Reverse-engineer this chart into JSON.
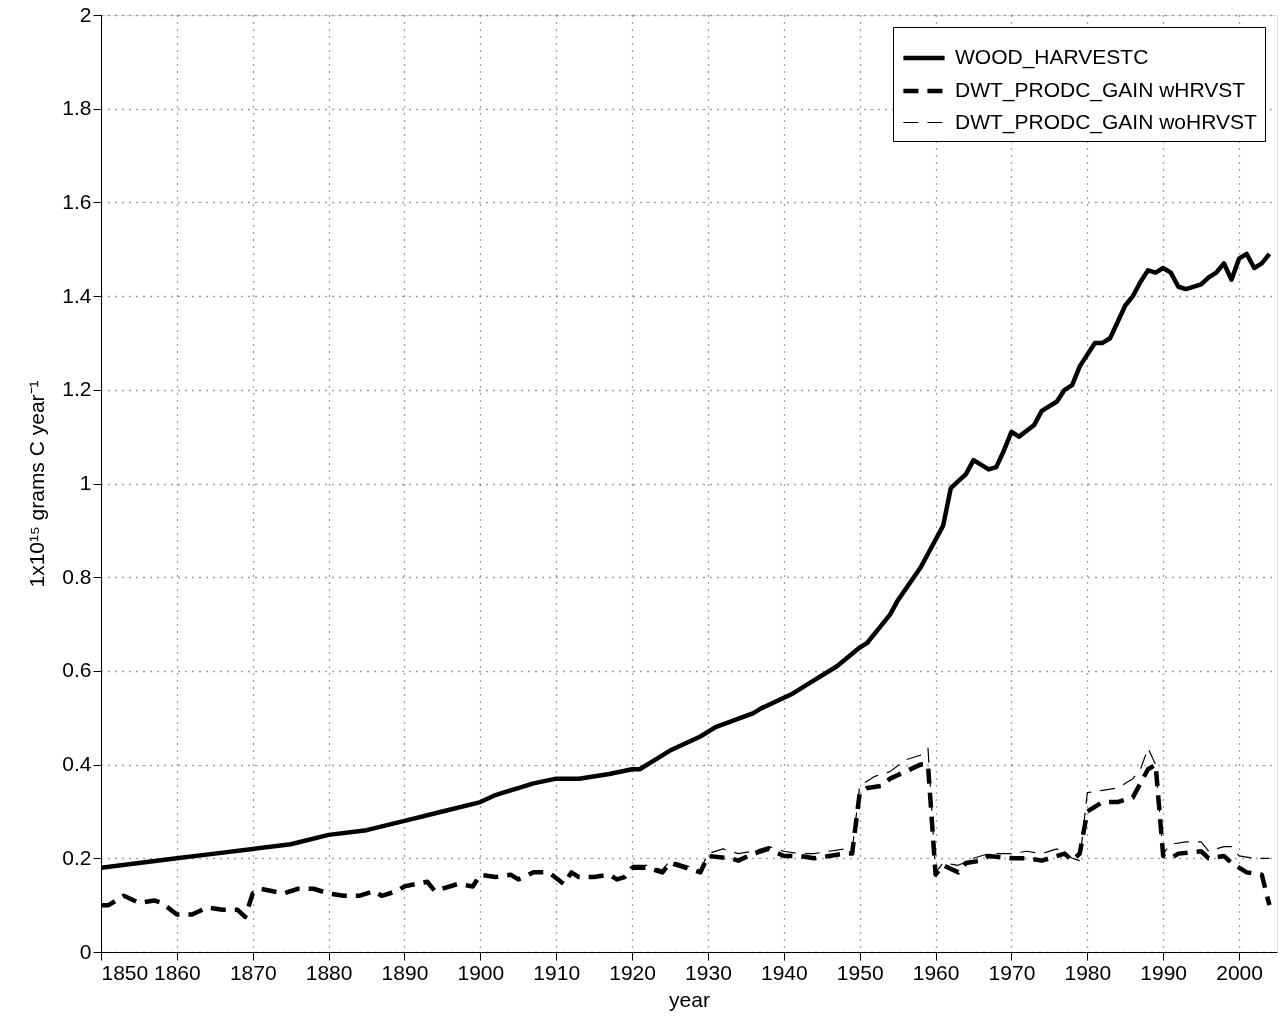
{
  "chart_data": {
    "type": "line",
    "xlabel": "year",
    "ylabel": "1x10¹⁵ grams C year⁻¹",
    "xlim": [
      1850,
      2005
    ],
    "ylim": [
      0,
      2
    ],
    "xticks": [
      1850,
      1860,
      1870,
      1880,
      1890,
      1900,
      1910,
      1920,
      1930,
      1940,
      1950,
      1960,
      1970,
      1980,
      1990,
      2000
    ],
    "yticks": [
      0,
      0.2,
      0.4,
      0.6,
      0.8,
      1,
      1.2,
      1.4,
      1.6,
      1.8,
      2
    ],
    "grid": true,
    "legend": "top right",
    "series": [
      {
        "name": "WOOD_HARVESTC",
        "color": "#000000",
        "line_style": "solid",
        "x": [
          1850,
          1855,
          1860,
          1865,
          1870,
          1875,
          1880,
          1885,
          1890,
          1895,
          1900,
          1902,
          1903,
          1905,
          1907,
          1910,
          1913,
          1917,
          1920,
          1921,
          1925,
          1929,
          1931,
          1936,
          1937,
          1941,
          1943,
          1947,
          1950,
          1951,
          1954,
          1955,
          1958,
          1959,
          1961,
          1962,
          1964,
          1965,
          1967,
          1968,
          1969,
          1970,
          1971,
          1973,
          1974,
          1976,
          1977,
          1978,
          1979,
          1981,
          1982,
          1983,
          1985,
          1986,
          1987,
          1988,
          1989,
          1990,
          1991,
          1992,
          1993,
          1995,
          1996,
          1997,
          1998,
          1999,
          2000,
          2001,
          2002,
          2003,
          2004
        ],
        "values": [
          0.18,
          0.19,
          0.2,
          0.21,
          0.22,
          0.23,
          0.25,
          0.26,
          0.28,
          0.3,
          0.32,
          0.335,
          0.34,
          0.35,
          0.36,
          0.37,
          0.37,
          0.38,
          0.39,
          0.39,
          0.43,
          0.46,
          0.48,
          0.51,
          0.52,
          0.55,
          0.57,
          0.61,
          0.65,
          0.66,
          0.72,
          0.75,
          0.82,
          0.85,
          0.91,
          0.99,
          1.02,
          1.05,
          1.03,
          1.035,
          1.07,
          1.11,
          1.1,
          1.125,
          1.155,
          1.175,
          1.2,
          1.21,
          1.25,
          1.3,
          1.3,
          1.31,
          1.38,
          1.4,
          1.43,
          1.455,
          1.45,
          1.46,
          1.45,
          1.42,
          1.415,
          1.425,
          1.44,
          1.45,
          1.47,
          1.435,
          1.48,
          1.49,
          1.46,
          1.47,
          1.49
        ]
      },
      {
        "name": "DWT_PRODC_GAIN wHRVST",
        "color": "#000000",
        "line_style": "dashed",
        "x": [
          1850,
          1851,
          1853,
          1855,
          1857,
          1858,
          1860,
          1862,
          1864,
          1866,
          1868,
          1869,
          1870,
          1871,
          1874,
          1876,
          1878,
          1880,
          1882,
          1884,
          1886,
          1887,
          1889,
          1890,
          1893,
          1894,
          1897,
          1899,
          1900,
          1902,
          1904,
          1905,
          1907,
          1909,
          1911,
          1912,
          1913,
          1915,
          1917,
          1918,
          1919,
          1920,
          1922,
          1924,
          1925,
          1927,
          1929,
          1930,
          1933,
          1934,
          1936,
          1938,
          1940,
          1942,
          1944,
          1946,
          1948,
          1949,
          1950,
          1951,
          1953,
          1954,
          1956,
          1958,
          1959,
          1960,
          1961,
          1963,
          1964,
          1966,
          1967,
          1970,
          1972,
          1974,
          1975,
          1977,
          1978,
          1979,
          1980,
          1982,
          1984,
          1986,
          1987,
          1988,
          1989,
          1990,
          1991,
          1992,
          1995,
          1996,
          1998,
          1999,
          2001,
          2003,
          2004
        ],
        "values": [
          0.1,
          0.1,
          0.12,
          0.105,
          0.11,
          0.105,
          0.08,
          0.08,
          0.095,
          0.09,
          0.09,
          0.075,
          0.125,
          0.135,
          0.125,
          0.135,
          0.135,
          0.125,
          0.12,
          0.12,
          0.13,
          0.12,
          0.13,
          0.14,
          0.15,
          0.13,
          0.145,
          0.14,
          0.165,
          0.16,
          0.165,
          0.155,
          0.17,
          0.17,
          0.145,
          0.17,
          0.16,
          0.16,
          0.165,
          0.155,
          0.16,
          0.18,
          0.18,
          0.17,
          0.19,
          0.18,
          0.17,
          0.205,
          0.2,
          0.195,
          0.21,
          0.22,
          0.205,
          0.205,
          0.2,
          0.205,
          0.21,
          0.21,
          0.34,
          0.35,
          0.355,
          0.37,
          0.385,
          0.4,
          0.4,
          0.165,
          0.185,
          0.17,
          0.19,
          0.195,
          0.205,
          0.2,
          0.2,
          0.195,
          0.2,
          0.21,
          0.195,
          0.21,
          0.3,
          0.32,
          0.32,
          0.33,
          0.36,
          0.39,
          0.4,
          0.205,
          0.2,
          0.21,
          0.215,
          0.2,
          0.205,
          0.19,
          0.17,
          0.165,
          0.1
        ]
      },
      {
        "name": "DWT_PRODC_GAIN woHRVST",
        "color": "#000000",
        "line_style": "dashed",
        "x": [
          1920,
          1922,
          1924,
          1925,
          1927,
          1929,
          1930,
          1932,
          1934,
          1936,
          1938,
          1940,
          1942,
          1944,
          1946,
          1948,
          1949,
          1950,
          1952,
          1954,
          1956,
          1958,
          1959,
          1960,
          1961,
          1963,
          1965,
          1967,
          1970,
          1972,
          1974,
          1976,
          1978,
          1979,
          1980,
          1982,
          1984,
          1986,
          1987,
          1988,
          1989,
          1990,
          1991,
          1993,
          1995,
          1996,
          1998,
          1999,
          2000,
          2002,
          2004
        ],
        "values": [
          0.185,
          0.185,
          0.175,
          0.195,
          0.185,
          0.175,
          0.21,
          0.22,
          0.21,
          0.215,
          0.225,
          0.215,
          0.21,
          0.21,
          0.215,
          0.22,
          0.215,
          0.355,
          0.375,
          0.385,
          0.41,
          0.42,
          0.435,
          0.17,
          0.19,
          0.185,
          0.2,
          0.21,
          0.21,
          0.215,
          0.21,
          0.22,
          0.2,
          0.195,
          0.34,
          0.345,
          0.35,
          0.37,
          0.39,
          0.435,
          0.4,
          0.21,
          0.23,
          0.235,
          0.235,
          0.215,
          0.225,
          0.225,
          0.205,
          0.2,
          0.2
        ]
      }
    ]
  }
}
